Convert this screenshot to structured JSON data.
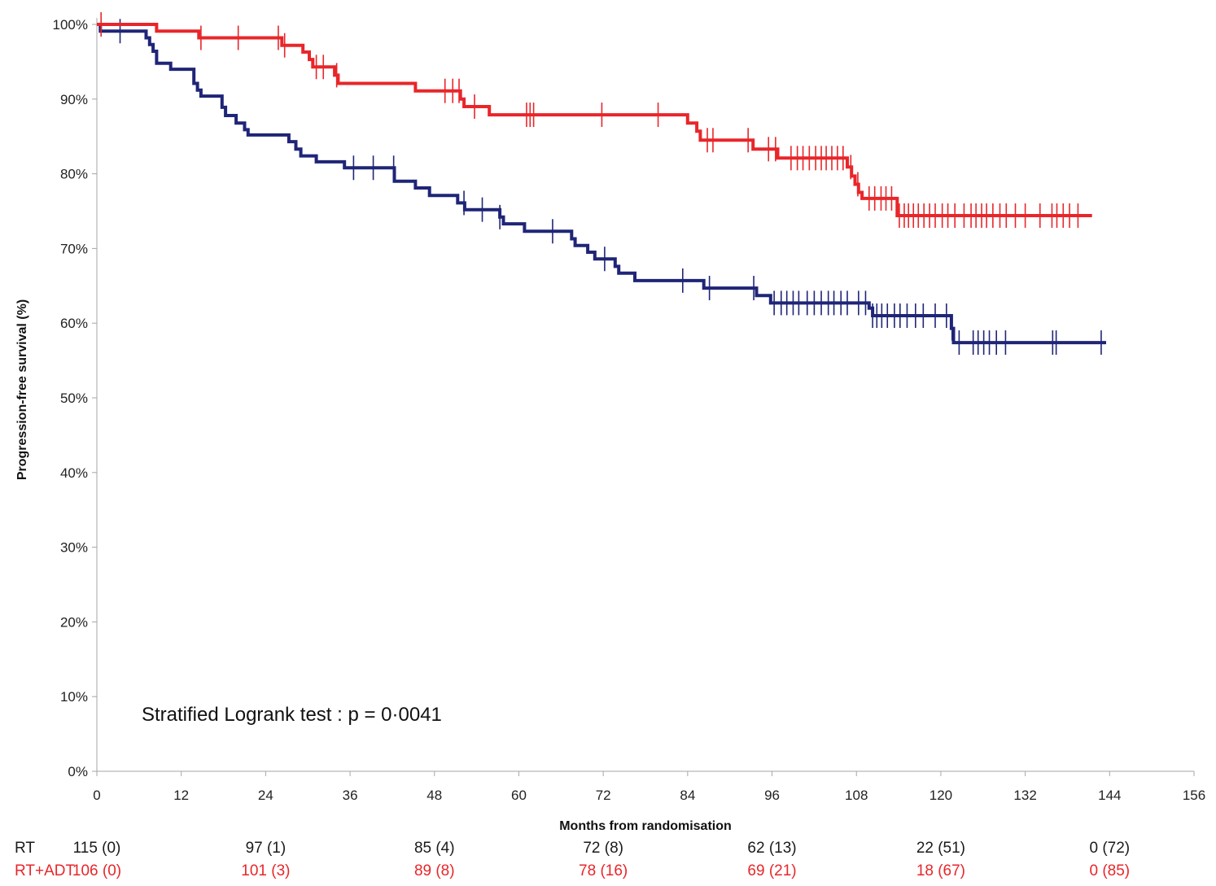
{
  "chart_data": {
    "type": "line",
    "subtype": "kaplan-meier",
    "title": "",
    "xlabel": "Months from randomisation",
    "ylabel": "Progression-free survival (%)",
    "xlim": [
      0,
      156
    ],
    "ylim": [
      0,
      100
    ],
    "x_ticks": [
      0,
      12,
      24,
      36,
      48,
      60,
      72,
      84,
      96,
      108,
      120,
      132,
      144,
      156
    ],
    "y_ticks": [
      0,
      10,
      20,
      30,
      40,
      50,
      60,
      70,
      80,
      90,
      100
    ],
    "y_tick_labels": [
      "0%",
      "10%",
      "20%",
      "30%",
      "40%",
      "50%",
      "60%",
      "70%",
      "80%",
      "90%",
      "100%"
    ],
    "grid": false,
    "legend": "none",
    "annotation": "Stratified Logrank test : p = 0·0041",
    "series": [
      {
        "id": "rt",
        "color": "#1f2577",
        "steps": [
          [
            0,
            100
          ],
          [
            0.5,
            99.1
          ],
          [
            7,
            98.2
          ],
          [
            7.5,
            97.3
          ],
          [
            8,
            96.4
          ],
          [
            8.5,
            94.8
          ],
          [
            10.5,
            94.0
          ],
          [
            13.8,
            92.1
          ],
          [
            14.3,
            91.2
          ],
          [
            14.8,
            90.4
          ],
          [
            17.8,
            88.9
          ],
          [
            18.3,
            87.8
          ],
          [
            19.8,
            86.8
          ],
          [
            21,
            85.9
          ],
          [
            21.5,
            85.2
          ],
          [
            27.3,
            84.3
          ],
          [
            28.3,
            83.3
          ],
          [
            29,
            82.4
          ],
          [
            31.2,
            81.6
          ],
          [
            35.2,
            80.8
          ],
          [
            42.3,
            79.0
          ],
          [
            45.3,
            78.1
          ],
          [
            47.3,
            77.1
          ],
          [
            51.3,
            76.1
          ],
          [
            52.3,
            75.2
          ],
          [
            57.3,
            74.2
          ],
          [
            57.8,
            73.3
          ],
          [
            60.8,
            72.3
          ],
          [
            67.5,
            71.3
          ],
          [
            68,
            70.4
          ],
          [
            69.8,
            69.5
          ],
          [
            70.8,
            68.6
          ],
          [
            73.7,
            67.6
          ],
          [
            74.2,
            66.7
          ],
          [
            76.5,
            65.7
          ],
          [
            86.3,
            64.7
          ],
          [
            93.8,
            63.7
          ],
          [
            95.8,
            62.7
          ],
          [
            109.8,
            62.0
          ],
          [
            110.3,
            61.0
          ],
          [
            121.5,
            59.3
          ],
          [
            121.8,
            57.4
          ],
          [
            143.5,
            57.4
          ]
        ],
        "censor_times": [
          3.3,
          36.5,
          39.3,
          42.2,
          52.2,
          54.8,
          57.3,
          64.8,
          72.2,
          83.3,
          87.1,
          93.4,
          96.3,
          97.3,
          98.1,
          99.0,
          99.8,
          101.0,
          102.0,
          103.0,
          104.0,
          104.8,
          105.8,
          106.7,
          108.3,
          109.3,
          110.3,
          110.9,
          111.6,
          112.4,
          113.4,
          114.2,
          115.2,
          116.4,
          117.5,
          119.2,
          120.8,
          121.6,
          122.6,
          124.6,
          125.3,
          126.1,
          126.9,
          127.9,
          129.2,
          135.9,
          136.4,
          142.8
        ]
      },
      {
        "id": "rt_adt",
        "color": "#e8262a",
        "steps": [
          [
            0,
            100
          ],
          [
            8.5,
            99.1
          ],
          [
            14.5,
            98.2
          ],
          [
            26.3,
            97.2
          ],
          [
            29.3,
            96.3
          ],
          [
            30.2,
            95.3
          ],
          [
            30.7,
            94.3
          ],
          [
            33.8,
            93.2
          ],
          [
            34.3,
            92.1
          ],
          [
            45.3,
            91.1
          ],
          [
            51.7,
            90.0
          ],
          [
            52.2,
            89.0
          ],
          [
            55.8,
            87.9
          ],
          [
            84,
            86.8
          ],
          [
            85.3,
            85.7
          ],
          [
            85.8,
            84.5
          ],
          [
            93.3,
            83.3
          ],
          [
            96.8,
            82.1
          ],
          [
            106.7,
            80.9
          ],
          [
            107.3,
            79.7
          ],
          [
            107.8,
            78.6
          ],
          [
            108.3,
            77.5
          ],
          [
            108.8,
            76.7
          ],
          [
            113.8,
            74.4
          ],
          [
            141.5,
            74.4
          ]
        ],
        "censor_times": [
          0.6,
          14.8,
          20.1,
          25.8,
          26.7,
          31.2,
          32.2,
          34.1,
          49.5,
          50.6,
          51.5,
          53.7,
          61.1,
          61.6,
          62.1,
          71.8,
          79.8,
          86.8,
          87.6,
          92.6,
          95.5,
          96.5,
          98.7,
          99.6,
          100.4,
          101.3,
          102.2,
          103.0,
          103.7,
          104.5,
          105.3,
          106.1,
          107.2,
          108.2,
          109.8,
          110.6,
          111.5,
          112.2,
          113.0,
          114.1,
          114.8,
          115.4,
          116.1,
          116.8,
          117.6,
          118.4,
          119.2,
          120.2,
          121.0,
          122.0,
          123.3,
          124.3,
          125.0,
          125.8,
          126.5,
          127.4,
          128.4,
          129.3,
          130.6,
          132.0,
          134.1,
          135.8,
          136.5,
          137.4,
          138.3,
          139.5
        ]
      }
    ],
    "risk_table": {
      "times": [
        0,
        24,
        48,
        72,
        96,
        120,
        144
      ],
      "rows": [
        {
          "label": "RT",
          "color": "#1a1a1a",
          "values": [
            "115 (0)",
            "97 (1)",
            "85 (4)",
            "72 (8)",
            "62 (13)",
            "22 (51)",
            "0 (72)"
          ]
        },
        {
          "label": "RT+ADT",
          "color": "#e8262a",
          "values": [
            "106 (0)",
            "101 (3)",
            "89 (8)",
            "78 (16)",
            "69 (21)",
            "18 (67)",
            "0 (85)"
          ]
        }
      ]
    }
  }
}
